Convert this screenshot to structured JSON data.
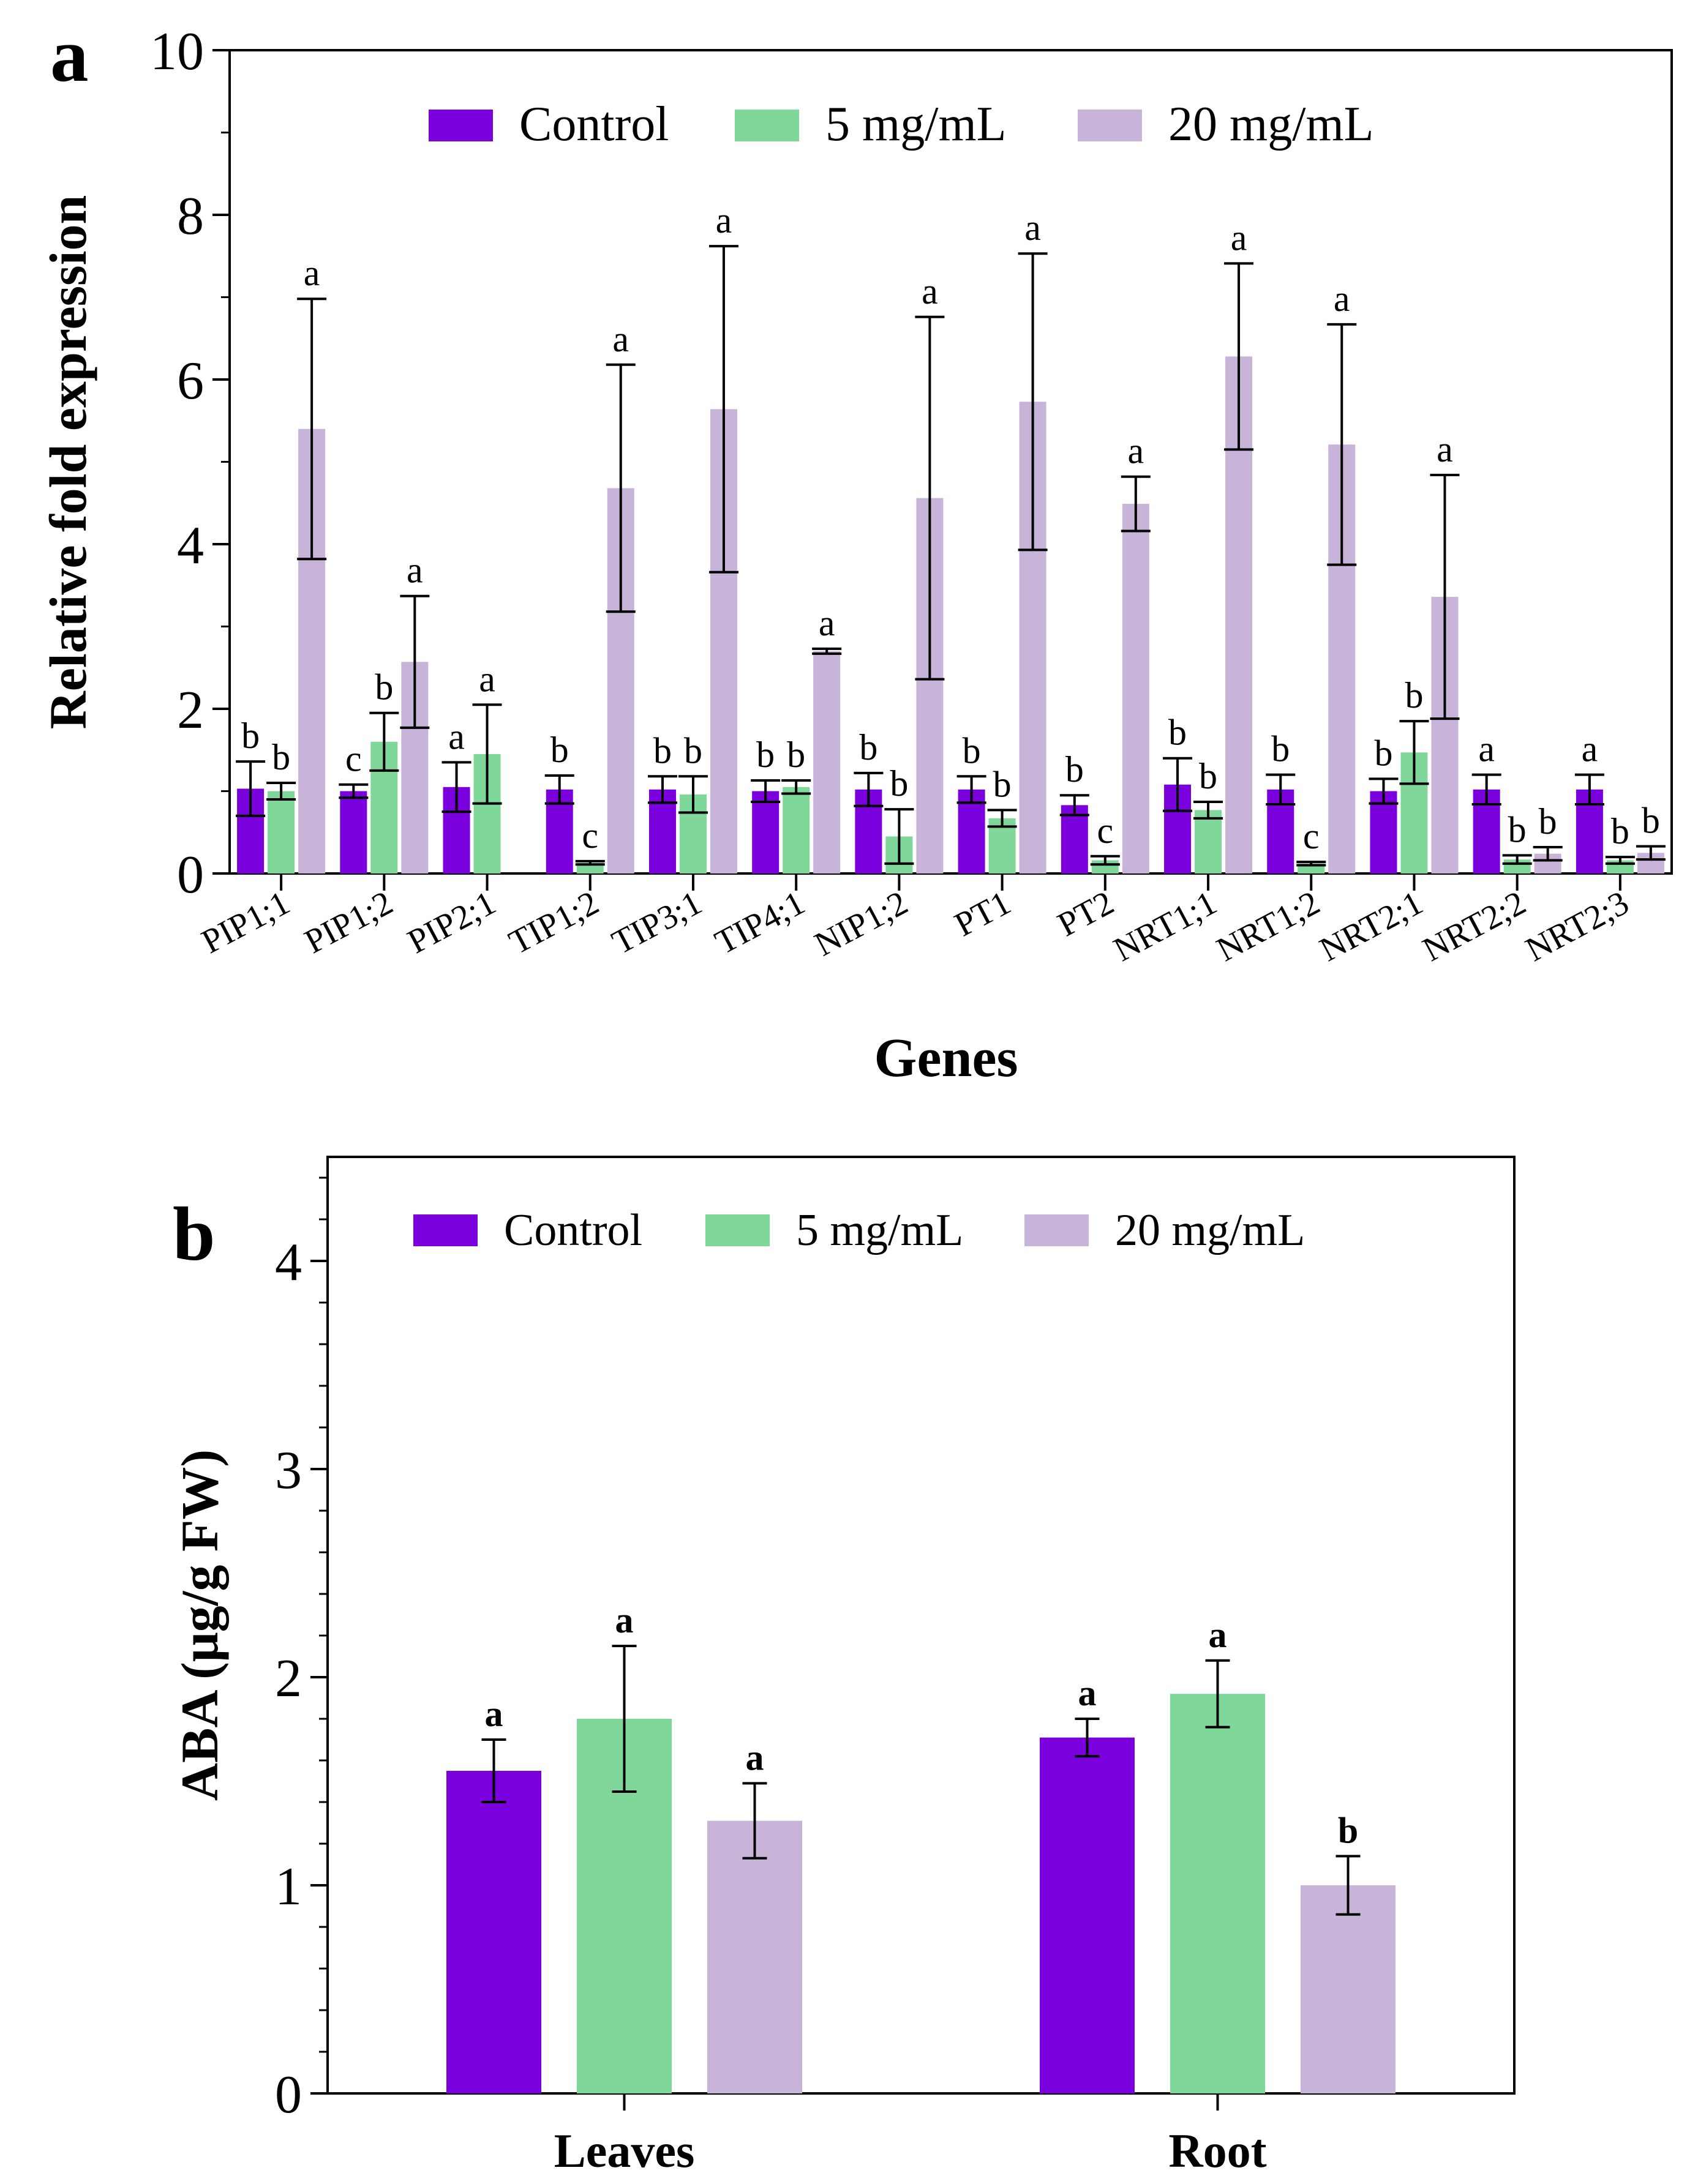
{
  "colors": {
    "control": "#7a00dd",
    "mg5": "#7fd89a",
    "mg20": "#c8b3d9"
  },
  "chart_data": [
    {
      "type": "bar",
      "panel_label": "a",
      "xlabel": "Genes",
      "ylabel": "Relative fold expression",
      "ylim": [
        0,
        10
      ],
      "yticks": [
        "0",
        "2",
        "4",
        "6",
        "8",
        "10"
      ],
      "legend": [
        "Control",
        "5 mg/mL",
        "20 mg/mL"
      ],
      "legend_position": "top-center",
      "categories": [
        "PIP1;1",
        "PIP1;2",
        "PIP2;1",
        "TIP1;2",
        "TIP3;1",
        "TIP4;1",
        "NIP1;2",
        "PT1",
        "PT2",
        "NRT1;1",
        "NRT1;2",
        "NRT2;1",
        "NRT2;2",
        "NRT2;3"
      ],
      "series": [
        {
          "name": "Control",
          "values": [
            1.03,
            1.0,
            1.05,
            1.02,
            1.02,
            1.0,
            1.02,
            1.02,
            0.83,
            1.08,
            1.02,
            1.0,
            1.02,
            1.02
          ],
          "errors": [
            0.33,
            0.08,
            0.3,
            0.17,
            0.16,
            0.13,
            0.2,
            0.16,
            0.12,
            0.32,
            0.18,
            0.15,
            0.18,
            0.18
          ],
          "letters": [
            "b",
            "c",
            "a",
            "b",
            "b",
            "b",
            "b",
            "b",
            "b",
            "b",
            "b",
            "b",
            "a",
            "a"
          ]
        },
        {
          "name": "5 mg/mL",
          "values": [
            1.0,
            1.6,
            1.45,
            0.13,
            0.96,
            1.05,
            0.45,
            0.67,
            0.16,
            0.77,
            0.12,
            1.47,
            0.17,
            0.16
          ],
          "errors": [
            0.1,
            0.35,
            0.6,
            0.02,
            0.22,
            0.08,
            0.33,
            0.1,
            0.05,
            0.1,
            0.02,
            0.38,
            0.05,
            0.04
          ],
          "letters": [
            "b",
            "b",
            "a",
            "c",
            "b",
            "b",
            "b",
            "b",
            "c",
            "b",
            "c",
            "b",
            "b",
            "b"
          ]
        },
        {
          "name": "20 mg/mL",
          "values": [
            5.4,
            2.57,
            0,
            4.68,
            5.64,
            2.7,
            4.56,
            5.73,
            4.49,
            6.28,
            5.21,
            3.36,
            0.24,
            0.25
          ],
          "errors": [
            1.58,
            0.8,
            0,
            1.5,
            1.98,
            0.03,
            2.2,
            1.8,
            0.33,
            1.13,
            1.46,
            1.48,
            0.08,
            0.08
          ],
          "letters": [
            "a",
            "a",
            "",
            "a",
            "a",
            "a",
            "a",
            "a",
            "a",
            "a",
            "a",
            "a",
            "b",
            "b"
          ]
        }
      ]
    },
    {
      "type": "bar",
      "panel_label": "b",
      "xlabel": "",
      "ylabel": "ABA (μg/g FW)",
      "ylim": [
        0,
        4.5
      ],
      "yticks": [
        "0",
        "1",
        "2",
        "3",
        "4"
      ],
      "legend": [
        "Control",
        "5 mg/mL",
        "20 mg/mL"
      ],
      "legend_position": "top-center",
      "categories": [
        "Leaves",
        "Root"
      ],
      "series": [
        {
          "name": "Control",
          "values": [
            1.55,
            1.71
          ],
          "errors": [
            0.15,
            0.09
          ],
          "letters": [
            "a",
            "a"
          ]
        },
        {
          "name": "5 mg/mL",
          "values": [
            1.8,
            1.92
          ],
          "errors": [
            0.35,
            0.16
          ],
          "letters": [
            "a",
            "a"
          ]
        },
        {
          "name": "20 mg/mL",
          "values": [
            1.31,
            1.0
          ],
          "errors": [
            0.18,
            0.14
          ],
          "letters": [
            "a",
            "b"
          ]
        }
      ]
    }
  ]
}
